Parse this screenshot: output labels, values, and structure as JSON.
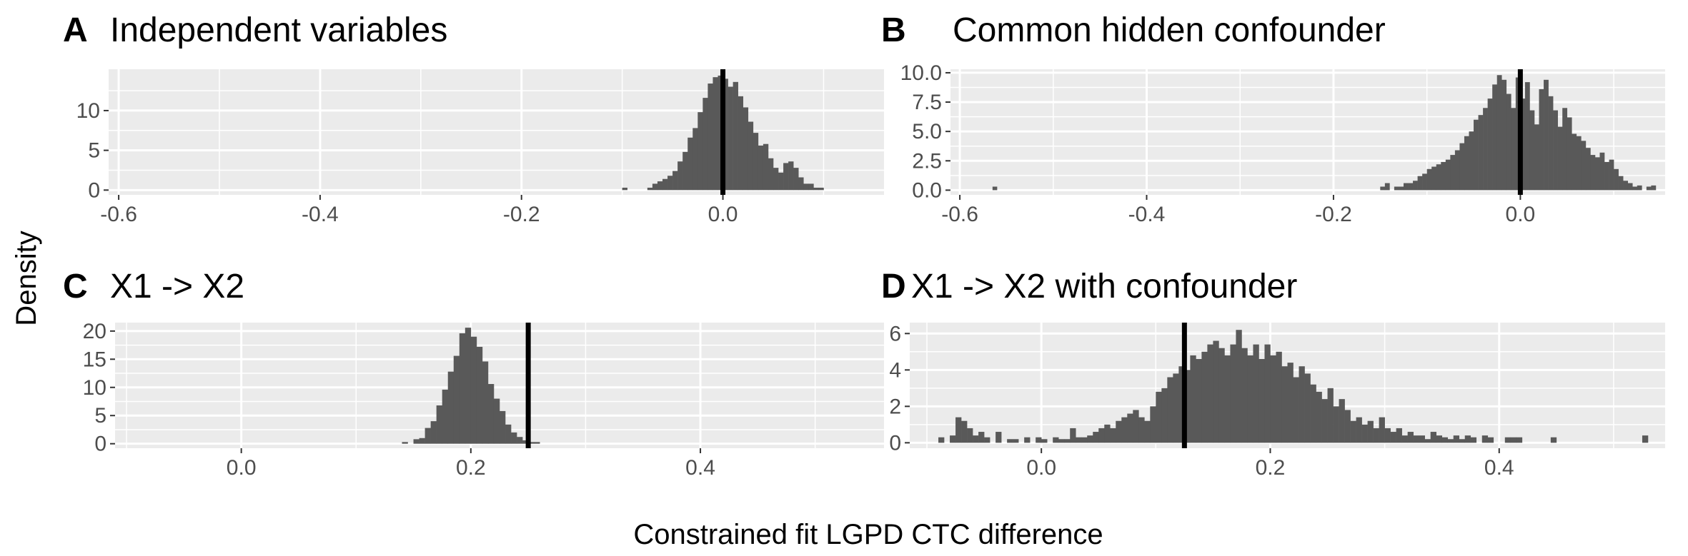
{
  "figure": {
    "xlabel": "Constrained fit LGPD CTC difference",
    "ylabel": "Density"
  },
  "colors": {
    "panel_bg": "#ebebeb",
    "grid_major": "#ffffff",
    "bar_fill": "#595959",
    "vline": "#000000",
    "tick": "#333333"
  },
  "chart_data": [
    {
      "type": "bar",
      "panel_letter": "A",
      "title": "Independent variables",
      "xlim": [
        -0.61,
        0.16
      ],
      "ylim": [
        -0.6,
        15.2
      ],
      "xticks": [
        -0.6,
        -0.4,
        -0.2,
        0.0
      ],
      "xtick_labels": [
        "-0.6",
        "-0.4",
        "-0.2",
        "0.0"
      ],
      "yticks": [
        0,
        5,
        10
      ],
      "ytick_labels": [
        "0",
        "5",
        "10"
      ],
      "vline": 0.0,
      "bin_start": -0.1,
      "bin_width": 0.005,
      "bin_heights": [
        0.3,
        0,
        0,
        0,
        0,
        0.3,
        0.8,
        1.1,
        1.4,
        1.8,
        2.4,
        3.6,
        4.8,
        6.6,
        7.8,
        9.8,
        11.6,
        13.4,
        14.2,
        14.4,
        14.0,
        13.0,
        13.6,
        11.8,
        10.4,
        8.6,
        7.2,
        5.6,
        5.8,
        4.0,
        2.8,
        2.2,
        3.4,
        3.6,
        2.8,
        1.6,
        0.8,
        0.8,
        0.3,
        0.3
      ],
      "grid_lines_x": [
        -0.5,
        -0.3,
        -0.1,
        0.1
      ],
      "grid_lines_y": [
        2.5,
        7.5,
        12.5
      ]
    },
    {
      "type": "bar",
      "panel_letter": "B",
      "title": "Common hidden confounder",
      "xlim": [
        -0.61,
        0.155
      ],
      "ylim": [
        -0.4,
        10.3
      ],
      "xticks": [
        -0.6,
        -0.4,
        -0.2,
        0.0
      ],
      "xtick_labels": [
        "-0.6",
        "-0.4",
        "-0.2",
        "0.0"
      ],
      "yticks": [
        0.0,
        2.5,
        5.0,
        7.5,
        10.0
      ],
      "ytick_labels": [
        "0.0",
        "2.5",
        "5.0",
        "7.5",
        "10.0"
      ],
      "vline": 0.0,
      "bin_start": -0.15,
      "bin_width": 0.005,
      "bin_heights": [
        0.3,
        0.6,
        0,
        0.3,
        0.3,
        0.6,
        0.6,
        0.8,
        1.2,
        1.4,
        1.8,
        2.0,
        2.2,
        2.4,
        2.6,
        3.0,
        3.4,
        4.0,
        4.6,
        5.0,
        6.0,
        6.4,
        7.0,
        7.8,
        9.0,
        9.8,
        9.4,
        8.2,
        7.0,
        9.6,
        7.8,
        9.2,
        6.8,
        5.6,
        8.6,
        9.4,
        8.0,
        6.8,
        5.4,
        7.0,
        6.2,
        4.8,
        4.6,
        4.2,
        3.6,
        3.0,
        2.8,
        3.2,
        2.4,
        2.6,
        1.8,
        1.2,
        0.8,
        0.6,
        0.3,
        0.4,
        0,
        0.3,
        0.4,
        0,
        0,
        0,
        0,
        0,
        0,
        0,
        0,
        0,
        0,
        0,
        0,
        0,
        0,
        0,
        0,
        0,
        0,
        0,
        0,
        0
      ],
      "extra_bars": [
        {
          "x": -0.565,
          "h": 0.3
        }
      ],
      "grid_lines_x": [
        -0.5,
        -0.3,
        -0.1,
        0.1
      ],
      "grid_lines_y": [
        1.25,
        3.75,
        6.25,
        8.75
      ]
    },
    {
      "type": "bar",
      "panel_letter": "C",
      "title": "X1 -> X2",
      "xlim": [
        -0.11,
        0.56
      ],
      "ylim": [
        -0.8,
        21.5
      ],
      "xticks": [
        0.0,
        0.2,
        0.4
      ],
      "xtick_labels": [
        "0.0",
        "0.2",
        "0.4"
      ],
      "yticks": [
        0,
        5,
        10,
        15,
        20
      ],
      "ytick_labels": [
        "0",
        "5",
        "10",
        "15",
        "20"
      ],
      "vline": 0.25,
      "bin_start": 0.14,
      "bin_width": 0.005,
      "bin_heights": [
        0.3,
        0,
        0.8,
        1.0,
        2.8,
        4.0,
        6.8,
        9.6,
        12.8,
        15.6,
        19.6,
        20.6,
        19.0,
        17.2,
        14.6,
        10.6,
        8.0,
        5.8,
        3.4,
        2.0,
        1.2,
        0.6,
        0.3,
        0.3
      ],
      "grid_lines_x": [
        -0.1,
        0.1,
        0.3,
        0.5
      ],
      "grid_lines_y": [
        2.5,
        7.5,
        12.5,
        17.5
      ]
    },
    {
      "type": "bar",
      "panel_letter": "D",
      "title": "X1 -> X2 with confounder",
      "xlim": [
        -0.115,
        0.545
      ],
      "ylim": [
        -0.3,
        6.6
      ],
      "xticks": [
        0.0,
        0.2,
        0.4
      ],
      "xtick_labels": [
        "0.0",
        "0.2",
        "0.4"
      ],
      "yticks": [
        0,
        2,
        4,
        6
      ],
      "ytick_labels": [
        "0",
        "2",
        "4",
        "6"
      ],
      "vline": 0.125,
      "bin_start": -0.09,
      "bin_width": 0.005,
      "bin_heights": [
        0.3,
        0,
        0.4,
        1.4,
        1.2,
        0.8,
        0.4,
        0.6,
        0.3,
        0,
        0.6,
        0,
        0.2,
        0.2,
        0,
        0.3,
        0,
        0.3,
        0.2,
        0,
        0.3,
        0.2,
        0.2,
        0.8,
        0.3,
        0.3,
        0.4,
        0.6,
        0.8,
        1.0,
        0.8,
        1.2,
        1.4,
        1.6,
        1.8,
        1.4,
        1.2,
        2.0,
        2.8,
        3.0,
        3.6,
        3.8,
        4.2,
        4.0,
        4.8,
        4.6,
        5.0,
        5.4,
        5.6,
        5.2,
        4.8,
        5.4,
        6.2,
        5.2,
        4.8,
        5.4,
        4.6,
        5.4,
        4.8,
        5.0,
        4.2,
        4.4,
        3.6,
        4.2,
        3.8,
        3.2,
        2.8,
        2.4,
        3.0,
        2.0,
        2.4,
        1.8,
        1.2,
        1.4,
        1.0,
        1.2,
        0.8,
        1.4,
        0.8,
        0.6,
        0.8,
        0.4,
        0.6,
        0.4,
        0.4,
        0.2,
        0.6,
        0.4,
        0.3,
        0.2,
        0.4,
        0.2,
        0.4,
        0.3,
        0,
        0.4,
        0.3,
        0,
        0,
        0.3,
        0.3,
        0.3,
        0,
        0,
        0,
        0,
        0,
        0.3,
        0,
        0,
        0,
        0,
        0,
        0,
        0,
        0,
        0,
        0,
        0,
        0,
        0,
        0,
        0,
        0.4
      ],
      "grid_lines_x": [
        -0.1,
        0.1,
        0.3,
        0.5
      ],
      "grid_lines_y": [
        1,
        3,
        5
      ]
    }
  ]
}
